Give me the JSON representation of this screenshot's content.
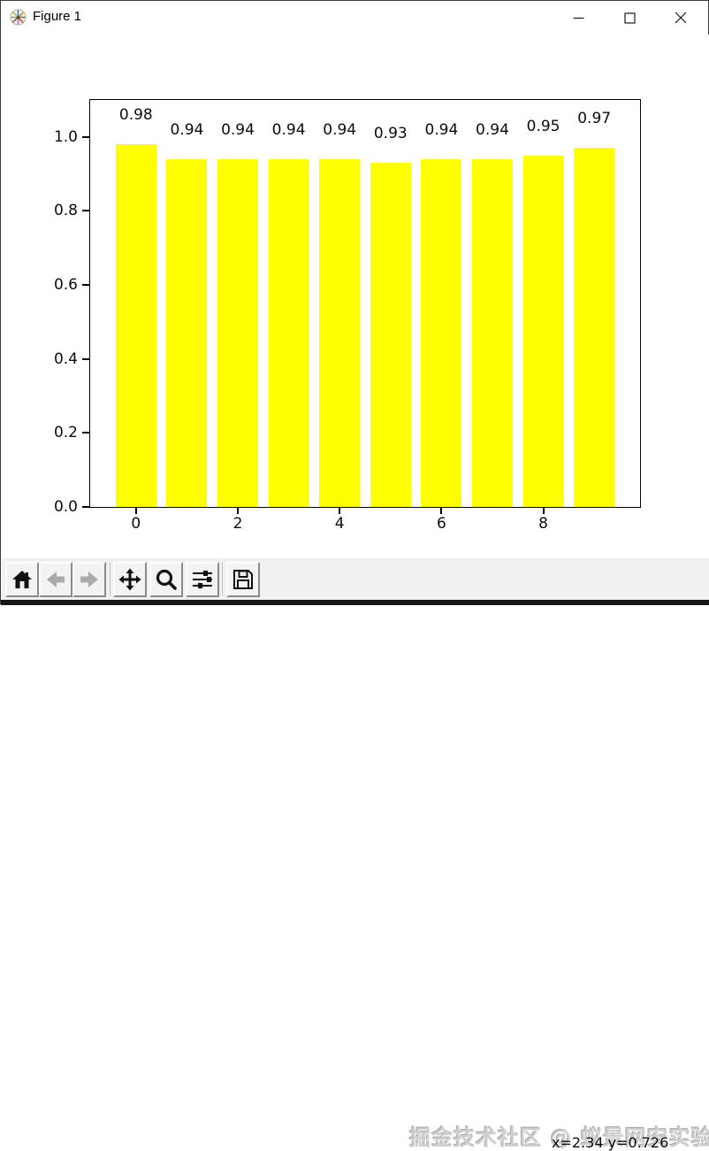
{
  "window": {
    "title": "Figure 1",
    "icon": "matplotlib-logo-icon",
    "controls": [
      {
        "name": "minimize"
      },
      {
        "name": "maximize"
      },
      {
        "name": "close"
      }
    ]
  },
  "chart_data": {
    "type": "bar",
    "x": [
      0,
      1,
      2,
      3,
      4,
      5,
      6,
      7,
      8,
      9
    ],
    "values": [
      0.98,
      0.94,
      0.94,
      0.94,
      0.94,
      0.93,
      0.94,
      0.94,
      0.95,
      0.97
    ],
    "bar_labels": [
      "0.98",
      "0.94",
      "0.94",
      "0.94",
      "0.94",
      "0.93",
      "0.94",
      "0.94",
      "0.95",
      "0.97"
    ],
    "bar_color": "#ffff00",
    "bar_width": 0.8,
    "xticks": [
      0,
      2,
      4,
      6,
      8
    ],
    "xtick_labels": [
      "0",
      "2",
      "4",
      "6",
      "8"
    ],
    "yticks": [
      0,
      0.2,
      0.4,
      0.6,
      0.8,
      1.0
    ],
    "ytick_labels": [
      "0.0",
      "0.2",
      "0.4",
      "0.6",
      "0.8",
      "1.0"
    ],
    "xlim": [
      -0.9,
      9.9
    ],
    "ylim": [
      0,
      1.1
    ],
    "grid": false,
    "legend_visible": false,
    "title": "",
    "xlabel": "",
    "ylabel": ""
  },
  "toolbar": {
    "buttons": [
      {
        "name": "home",
        "enabled": true
      },
      {
        "name": "back",
        "enabled": false
      },
      {
        "name": "forward",
        "enabled": false
      },
      {
        "name": "pan",
        "enabled": true
      },
      {
        "name": "zoom",
        "enabled": true
      },
      {
        "name": "configure-subplots",
        "enabled": true
      },
      {
        "name": "save",
        "enabled": true
      }
    ],
    "watermark": "掘金技术社区 @ 蚁景网安实验室",
    "coordinates": "x=2.34 y=0.726"
  }
}
